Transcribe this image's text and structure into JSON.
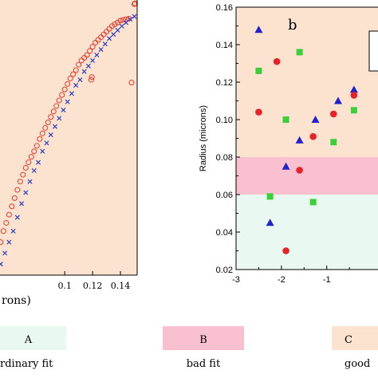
{
  "chart_data": [
    {
      "type": "scatter",
      "panel": "a (partial)",
      "xlabel": "rons)",
      "x_ticks": [
        "0.1",
        "0.12",
        "0.14"
      ],
      "xlim": [
        0.0535,
        0.152
      ],
      "ylim": [
        0,
        1
      ],
      "background": "#fbe3cf",
      "series": [
        {
          "marker": "circle",
          "color": "#e8392c",
          "points": [
            [
              0.054,
              0.12
            ],
            [
              0.056,
              0.16
            ],
            [
              0.058,
              0.19
            ],
            [
              0.06,
              0.22
            ],
            [
              0.062,
              0.25
            ],
            [
              0.064,
              0.28
            ],
            [
              0.066,
              0.31
            ],
            [
              0.068,
              0.34
            ],
            [
              0.07,
              0.365
            ],
            [
              0.072,
              0.39
            ],
            [
              0.074,
              0.41
            ],
            [
              0.076,
              0.43
            ],
            [
              0.078,
              0.45
            ],
            [
              0.08,
              0.47
            ],
            [
              0.082,
              0.495
            ],
            [
              0.084,
              0.515
            ],
            [
              0.086,
              0.535
            ],
            [
              0.088,
              0.555
            ],
            [
              0.09,
              0.575
            ],
            [
              0.092,
              0.595
            ],
            [
              0.094,
              0.615
            ],
            [
              0.096,
              0.635
            ],
            [
              0.098,
              0.655
            ],
            [
              0.1,
              0.675
            ],
            [
              0.102,
              0.695
            ],
            [
              0.104,
              0.715
            ],
            [
              0.106,
              0.73
            ],
            [
              0.108,
              0.745
            ],
            [
              0.11,
              0.765
            ],
            [
              0.112,
              0.78
            ],
            [
              0.114,
              0.79
            ],
            [
              0.116,
              0.8
            ],
            [
              0.118,
              0.815
            ],
            [
              0.12,
              0.83
            ],
            [
              0.122,
              0.845
            ],
            [
              0.124,
              0.855
            ],
            [
              0.126,
              0.865
            ],
            [
              0.128,
              0.875
            ],
            [
              0.13,
              0.885
            ],
            [
              0.132,
              0.895
            ],
            [
              0.134,
              0.905
            ],
            [
              0.136,
              0.912
            ],
            [
              0.138,
              0.918
            ],
            [
              0.14,
              0.925
            ],
            [
              0.142,
              0.928
            ],
            [
              0.144,
              0.93
            ],
            [
              0.146,
              0.932
            ],
            [
              0.148,
              0.7
            ],
            [
              0.15,
              0.985
            ],
            [
              0.1505,
              0.988
            ],
            [
              0.119,
              0.71
            ],
            [
              0.1195,
              0.72
            ]
          ]
        },
        {
          "marker": "x",
          "color": "#2f3fbf",
          "points": [
            [
              0.054,
              0.04
            ],
            [
              0.057,
              0.08
            ],
            [
              0.06,
              0.12
            ],
            [
              0.063,
              0.16
            ],
            [
              0.066,
              0.21
            ],
            [
              0.069,
              0.26
            ],
            [
              0.072,
              0.3
            ],
            [
              0.075,
              0.34
            ],
            [
              0.078,
              0.38
            ],
            [
              0.081,
              0.41
            ],
            [
              0.084,
              0.45
            ],
            [
              0.087,
              0.48
            ],
            [
              0.09,
              0.51
            ],
            [
              0.093,
              0.54
            ],
            [
              0.096,
              0.57
            ],
            [
              0.099,
              0.6
            ],
            [
              0.102,
              0.63
            ],
            [
              0.105,
              0.66
            ],
            [
              0.108,
              0.69
            ],
            [
              0.111,
              0.71
            ],
            [
              0.114,
              0.74
            ],
            [
              0.117,
              0.76
            ],
            [
              0.12,
              0.78
            ],
            [
              0.123,
              0.8
            ],
            [
              0.126,
              0.82
            ],
            [
              0.129,
              0.84
            ],
            [
              0.132,
              0.86
            ],
            [
              0.135,
              0.875
            ],
            [
              0.138,
              0.89
            ],
            [
              0.141,
              0.905
            ],
            [
              0.144,
              0.918
            ],
            [
              0.147,
              0.93
            ],
            [
              0.15,
              0.94
            ]
          ]
        }
      ]
    },
    {
      "type": "scatter",
      "panel_label": "b",
      "ylabel": "Radius (microns)",
      "xlim": [
        -3,
        0.2
      ],
      "ylim": [
        0.02,
        0.16
      ],
      "x_ticks": [
        "-3",
        "-2",
        "-1"
      ],
      "x_tick_values": [
        -3,
        -2,
        -1
      ],
      "y_ticks": [
        "0.02",
        "0.04",
        "0.06",
        "0.08",
        "0.10",
        "0.12",
        "0.14",
        "0.16"
      ],
      "y_tick_values": [
        0.02,
        0.04,
        0.06,
        0.08,
        0.1,
        0.12,
        0.14,
        0.16
      ],
      "bands": [
        {
          "label": "A",
          "from": 0.02,
          "to": 0.06,
          "color": "#e9f8f1"
        },
        {
          "label": "B",
          "from": 0.06,
          "to": 0.08,
          "color": "#f9c0cf"
        },
        {
          "label": "C",
          "from": 0.08,
          "to": 0.16,
          "color": "#fbe3cf"
        }
      ],
      "series": [
        {
          "marker": "triangle",
          "color": "#2222cc",
          "points": [
            [
              -2.5,
              0.148
            ],
            [
              -1.6,
              0.089
            ],
            [
              -1.25,
              0.1
            ],
            [
              -1.9,
              0.075
            ],
            [
              -2.25,
              0.045
            ],
            [
              -0.75,
              0.11
            ],
            [
              -0.4,
              0.116
            ]
          ]
        },
        {
          "marker": "circle",
          "color": "#e8222a",
          "points": [
            [
              -2.5,
              0.104
            ],
            [
              -2.1,
              0.131
            ],
            [
              -1.3,
              0.091
            ],
            [
              -1.6,
              0.073
            ],
            [
              -1.9,
              0.03
            ],
            [
              -0.85,
              0.103
            ],
            [
              -0.4,
              0.113
            ]
          ]
        },
        {
          "marker": "square",
          "color": "#3ccf3c",
          "points": [
            [
              -2.5,
              0.126
            ],
            [
              -1.6,
              0.136
            ],
            [
              -1.9,
              0.1
            ],
            [
              -0.85,
              0.088
            ],
            [
              -1.3,
              0.056
            ],
            [
              -2.25,
              0.059
            ],
            [
              -0.4,
              0.105
            ]
          ]
        }
      ]
    }
  ],
  "legend": [
    {
      "key": "A",
      "text": "rdinary fit",
      "color": "#e9f8f1"
    },
    {
      "key": "B",
      "text": "bad fit",
      "color": "#f9c0cf"
    },
    {
      "key": "C",
      "text": "good",
      "color": "#fbe3cf"
    }
  ]
}
